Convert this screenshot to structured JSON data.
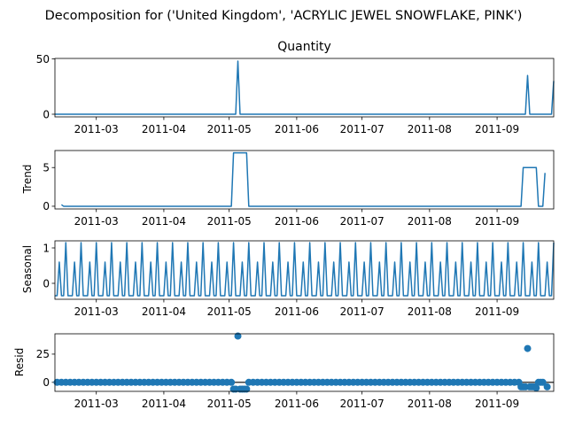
{
  "suptitle": "Decomposition for ('United Kingdom', 'ACRYLIC JEWEL SNOWFLAKE, PINK')",
  "x_tick_labels": [
    "2011-03",
    "2011-04",
    "2011-05",
    "2011-06",
    "2011-07",
    "2011-08",
    "2011-09"
  ],
  "line_color": "#1f77b4",
  "chart_data": [
    {
      "type": "line",
      "title": "Quantity",
      "ylabel": "",
      "x_range": [
        "2011-02-10",
        "2011-09-27"
      ],
      "yticks": [
        0,
        50
      ],
      "ylim": [
        -2.4,
        50.4
      ],
      "series": [
        {
          "x": [
            "2011-02-10",
            "2011-05-04",
            "2011-05-05",
            "2011-05-06",
            "2011-09-14",
            "2011-09-15",
            "2011-09-16",
            "2011-09-26",
            "2011-09-27"
          ],
          "values": [
            0,
            0,
            48,
            0,
            0,
            35,
            0,
            0,
            30
          ]
        }
      ]
    },
    {
      "type": "line",
      "title": "",
      "ylabel": "Trend",
      "x_range": [
        "2011-02-10",
        "2011-09-27"
      ],
      "yticks": [
        0,
        5
      ],
      "ylim": [
        -0.35,
        7.2
      ],
      "series": [
        {
          "x": [
            "2011-02-13",
            "2011-02-14",
            "2011-05-02",
            "2011-05-03",
            "2011-05-09",
            "2011-05-10",
            "2011-09-12",
            "2011-09-13",
            "2011-09-19",
            "2011-09-20",
            "2011-09-22",
            "2011-09-23"
          ],
          "values": [
            0.2,
            0,
            0,
            6.9,
            6.9,
            0,
            0,
            5,
            5,
            0,
            0,
            4.3
          ]
        }
      ]
    },
    {
      "type": "line",
      "title": "",
      "ylabel": "Seasonal",
      "x_range": [
        "2011-02-10",
        "2011-09-27"
      ],
      "yticks": [
        0,
        1
      ],
      "ylim": [
        -0.45,
        1.2
      ],
      "period_days": 7,
      "pattern": [
        -0.35,
        -0.35,
        0.6,
        -0.35,
        -0.35,
        1.15,
        -0.35
      ]
    },
    {
      "type": "scatter",
      "title": "",
      "ylabel": "Resid",
      "x_range": [
        "2011-02-10",
        "2011-09-27"
      ],
      "yticks": [
        0,
        25
      ],
      "ylim": [
        -8,
        43
      ],
      "baseline": 0,
      "series": [
        {
          "x": [
            "2011-02-11",
            "2011-02-13",
            "2011-02-15",
            "2011-02-17",
            "2011-02-19",
            "2011-02-21",
            "2011-02-23",
            "2011-02-25",
            "2011-02-27",
            "2011-03-01",
            "2011-03-03",
            "2011-03-05",
            "2011-03-07",
            "2011-03-09",
            "2011-03-11",
            "2011-03-13",
            "2011-03-15",
            "2011-03-17",
            "2011-03-19",
            "2011-03-21",
            "2011-03-23",
            "2011-03-25",
            "2011-03-27",
            "2011-03-29",
            "2011-03-31",
            "2011-04-02",
            "2011-04-04",
            "2011-04-06",
            "2011-04-08",
            "2011-04-10",
            "2011-04-12",
            "2011-04-14",
            "2011-04-16",
            "2011-04-18",
            "2011-04-20",
            "2011-04-22",
            "2011-04-24",
            "2011-04-26",
            "2011-04-28",
            "2011-04-30",
            "2011-05-02",
            "2011-05-03",
            "2011-05-04",
            "2011-05-05",
            "2011-05-06",
            "2011-05-07",
            "2011-05-08",
            "2011-05-09",
            "2011-05-10",
            "2011-05-12",
            "2011-05-14",
            "2011-05-16",
            "2011-05-18",
            "2011-05-20",
            "2011-05-22",
            "2011-05-24",
            "2011-05-26",
            "2011-05-28",
            "2011-05-30",
            "2011-06-01",
            "2011-06-03",
            "2011-06-05",
            "2011-06-07",
            "2011-06-09",
            "2011-06-11",
            "2011-06-13",
            "2011-06-15",
            "2011-06-17",
            "2011-06-19",
            "2011-06-21",
            "2011-06-23",
            "2011-06-25",
            "2011-06-27",
            "2011-06-29",
            "2011-07-01",
            "2011-07-03",
            "2011-07-05",
            "2011-07-07",
            "2011-07-09",
            "2011-07-11",
            "2011-07-13",
            "2011-07-15",
            "2011-07-17",
            "2011-07-19",
            "2011-07-21",
            "2011-07-23",
            "2011-07-25",
            "2011-07-27",
            "2011-07-29",
            "2011-07-31",
            "2011-08-02",
            "2011-08-04",
            "2011-08-06",
            "2011-08-08",
            "2011-08-10",
            "2011-08-12",
            "2011-08-14",
            "2011-08-16",
            "2011-08-18",
            "2011-08-20",
            "2011-08-22",
            "2011-08-24",
            "2011-08-26",
            "2011-08-28",
            "2011-08-30",
            "2011-09-01",
            "2011-09-03",
            "2011-09-05",
            "2011-09-07",
            "2011-09-09",
            "2011-09-11",
            "2011-09-12",
            "2011-09-13",
            "2011-09-14",
            "2011-09-15",
            "2011-09-16",
            "2011-09-17",
            "2011-09-18",
            "2011-09-19",
            "2011-09-20",
            "2011-09-21",
            "2011-09-22",
            "2011-09-24"
          ],
          "values": [
            0,
            0,
            0,
            0,
            0,
            0,
            0,
            0,
            0,
            0,
            0,
            0,
            0,
            0,
            0,
            0,
            0,
            0,
            0,
            0,
            0,
            0,
            0,
            0,
            0,
            0,
            0,
            0,
            0,
            0,
            0,
            0,
            0,
            0,
            0,
            0,
            0,
            0,
            0,
            0,
            0,
            -6,
            -6,
            41,
            -6,
            -6,
            -6,
            -6,
            0,
            0,
            0,
            0,
            0,
            0,
            0,
            0,
            0,
            0,
            0,
            0,
            0,
            0,
            0,
            0,
            0,
            0,
            0,
            0,
            0,
            0,
            0,
            0,
            0,
            0,
            0,
            0,
            0,
            0,
            0,
            0,
            0,
            0,
            0,
            0,
            0,
            0,
            0,
            0,
            0,
            0,
            0,
            0,
            0,
            0,
            0,
            0,
            0,
            0,
            0,
            0,
            0,
            0,
            0,
            0,
            0,
            0,
            0,
            0,
            0,
            0,
            0,
            -4,
            -4,
            -4,
            30,
            -4,
            -4,
            -4,
            -5,
            0,
            0,
            0,
            -4
          ]
        }
      ]
    }
  ]
}
